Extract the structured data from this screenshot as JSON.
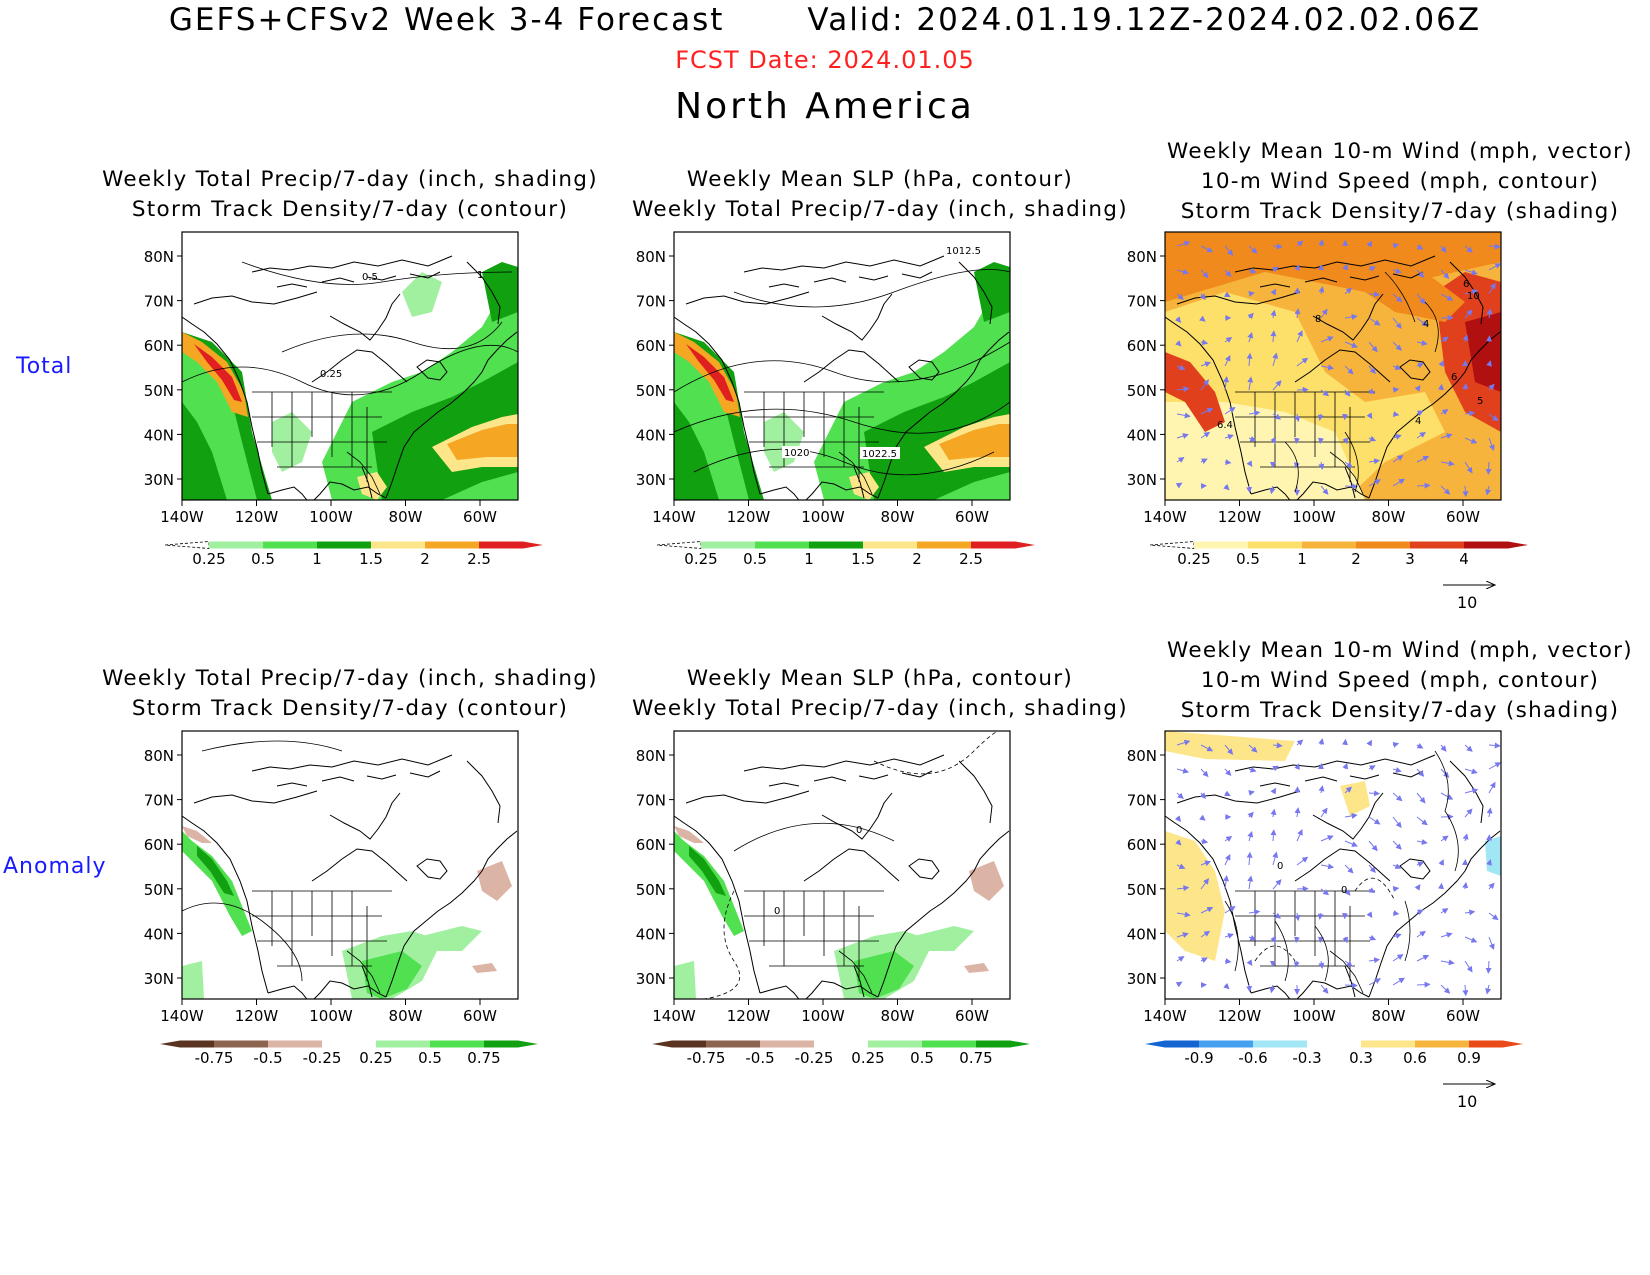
{
  "header": {
    "title": "GEFS+CFSv2 Week 3-4 Forecast       Valid: 2024.01.19.12Z-2024.02.02.06Z",
    "fcst_date": "FCST Date: 2024.01.05",
    "region": "North America"
  },
  "rows": {
    "total_label": "Total",
    "anomaly_label": "Anomaly"
  },
  "axis": {
    "lat_labels": [
      "80N",
      "70N",
      "60N",
      "50N",
      "40N",
      "30N"
    ],
    "lon_labels": [
      "140W",
      "120W",
      "100W",
      "80W",
      "60W"
    ]
  },
  "panels": {
    "total_precip": {
      "title_lines": [
        "Weekly Total Precip/7-day (inch, shading)",
        "Storm Track Density/7-day (contour)"
      ],
      "contour_labels": [
        "0.5",
        "1",
        "0.25"
      ],
      "colorbar": [
        "0.25",
        "0.5",
        "1",
        "1.5",
        "2",
        "2.5"
      ]
    },
    "total_slp": {
      "title_lines": [
        "Weekly Mean SLP (hPa, contour)",
        "Weekly Total Precip/7-day (inch, shading)"
      ],
      "contour_labels": [
        "1012.5",
        "1020",
        "1022.5"
      ],
      "colorbar": [
        "0.25",
        "0.5",
        "1",
        "1.5",
        "2",
        "2.5"
      ]
    },
    "total_wind": {
      "title_lines": [
        "Weekly Mean 10-m Wind (mph, vector)",
        "10-m Wind Speed (mph, contour)",
        "Storm Track Density/7-day (shading)"
      ],
      "contour_labels": [
        "6",
        "10",
        "8",
        "4",
        "6",
        "5",
        "6.4",
        "4"
      ],
      "colorbar": [
        "0.25",
        "0.5",
        "1",
        "2",
        "3",
        "4"
      ],
      "vector_ref": "10"
    },
    "anom_precip": {
      "title_lines": [
        "Weekly Total Precip/7-day (inch, shading)",
        "Storm Track Density/7-day (contour)"
      ],
      "colorbar": [
        "-0.75",
        "-0.5",
        "-0.25",
        "0.25",
        "0.5",
        "0.75"
      ]
    },
    "anom_slp": {
      "title_lines": [
        "Weekly Mean SLP (hPa, contour)",
        "Weekly Total Precip/7-day (inch, shading)"
      ],
      "contour_labels": [
        "0",
        "0"
      ],
      "colorbar": [
        "-0.75",
        "-0.5",
        "-0.25",
        "0.25",
        "0.5",
        "0.75"
      ]
    },
    "anom_wind": {
      "title_lines": [
        "Weekly Mean 10-m Wind (mph, vector)",
        "10-m Wind Speed (mph, contour)",
        "Storm Track Density/7-day (shading)"
      ],
      "contour_labels": [
        "0",
        "0"
      ],
      "colorbar": [
        "-0.9",
        "-0.6",
        "-0.3",
        "0.3",
        "0.6",
        "0.9"
      ],
      "vector_ref": "10"
    }
  },
  "colors": {
    "fcst_red": "#ff2020",
    "row_label_blue": "#1a1aff",
    "precip_scale": [
      "#a0f0a0",
      "#50e050",
      "#10a010",
      "#fde68a",
      "#f5a623",
      "#e02020"
    ],
    "anom_precip_scale": [
      "#5a3420",
      "#8c6450",
      "#dcb4a6",
      "#a0f0a0",
      "#50e050",
      "#10a010"
    ],
    "storm_scale": [
      "#fff5b0",
      "#fde06a",
      "#f7b43c",
      "#f18a1c",
      "#e0401c",
      "#b01010"
    ],
    "anom_storm_scale": [
      "#1464d2",
      "#46a0f0",
      "#a0e6f5",
      "#fde68a",
      "#f5b43c",
      "#e84a1a"
    ]
  }
}
